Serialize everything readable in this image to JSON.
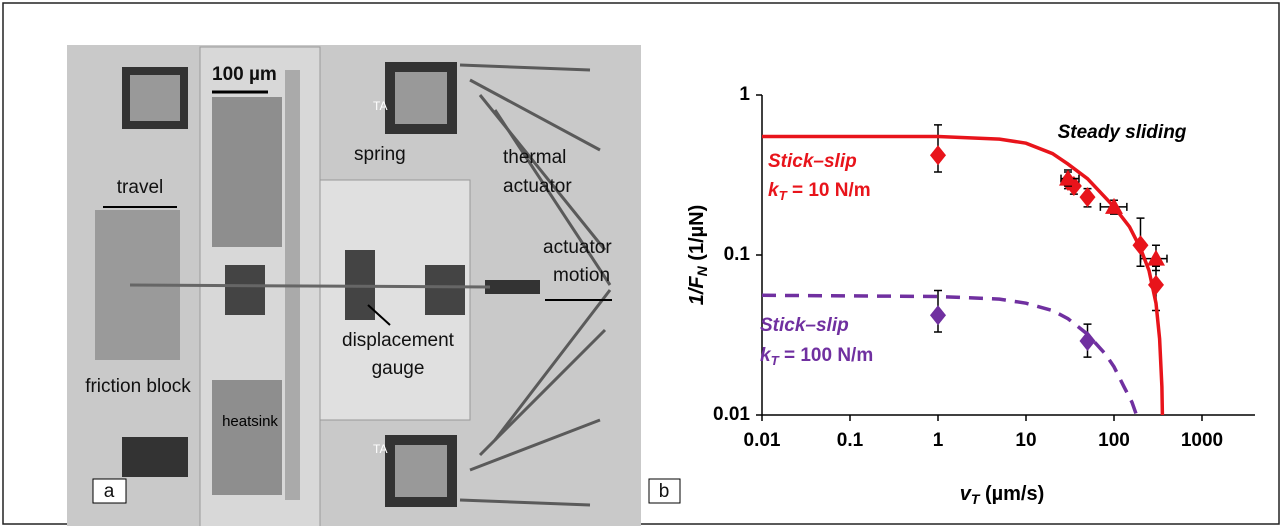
{
  "micrograph": {
    "scale_bar": "100 µm",
    "travel": "travel",
    "spring": "spring",
    "thermal": "thermal",
    "actuator": "actuator",
    "actuator2": "actuator",
    "motion": "motion",
    "displacement": "displacement",
    "gauge": "gauge",
    "friction_block": "friction block",
    "heatsink": "heatsink",
    "ta_top": "TA",
    "ta_bottom": "TA",
    "panel_label": "a"
  },
  "chart_data": {
    "type": "scatter",
    "panel_label": "b",
    "x_label": {
      "main": "v",
      "sub": "T",
      "rest": " (µm/s)"
    },
    "y_label": {
      "main": "1/F",
      "sub": "N",
      "rest": "  (1/µN)"
    },
    "log_x": true,
    "log_y": true,
    "xlim": [
      0.01,
      4000
    ],
    "ylim": [
      0.01,
      1
    ],
    "xticks": [
      0.01,
      0.1,
      1,
      10,
      100,
      1000
    ],
    "yticks": [
      0.01,
      0.1,
      1
    ],
    "annotations": [
      {
        "text": "Steady sliding",
        "color": "#000"
      },
      {
        "text": "Stick–slip",
        "color": "#e8141b"
      },
      {
        "main": "k",
        "sub": "T",
        "rest": " = 10 N/m",
        "color": "#e8141b"
      },
      {
        "text": "Stick–slip",
        "color": "#7030a0"
      },
      {
        "main": "k",
        "sub": "T",
        "rest": " = 100 N/m",
        "color": "#7030a0"
      }
    ],
    "series": [
      {
        "marker": "diamond",
        "color": "#e8141b",
        "x": [
          1,
          30,
          35,
          50,
          200,
          300
        ],
        "values": [
          0.42,
          0.29,
          0.27,
          0.23,
          0.115,
          0.065
        ],
        "ylow": [
          0.33,
          0.26,
          0.24,
          0.2,
          0.085,
          0.045
        ],
        "yhigh": [
          0.65,
          0.33,
          0.3,
          0.26,
          0.17,
          0.085
        ]
      },
      {
        "marker": "triangle",
        "color": "#e8141b",
        "x": [
          30,
          100,
          300
        ],
        "values": [
          0.3,
          0.2,
          0.095
        ],
        "xlow": [
          25,
          70,
          200
        ],
        "xhigh": [
          40,
          140,
          400
        ],
        "ylow": [
          0.27,
          0.18,
          0.08
        ],
        "yhigh": [
          0.34,
          0.22,
          0.115
        ]
      },
      {
        "marker": "line",
        "color": "#e8141b",
        "x": [
          0.01,
          1,
          5,
          10,
          20,
          30,
          50,
          100,
          150,
          200,
          250,
          300,
          330,
          350,
          355
        ],
        "values": [
          0.55,
          0.55,
          0.53,
          0.5,
          0.43,
          0.37,
          0.3,
          0.2,
          0.15,
          0.11,
          0.08,
          0.05,
          0.03,
          0.015,
          0.01
        ]
      },
      {
        "marker": "diamond",
        "color": "#7030a0",
        "x": [
          1,
          50
        ],
        "values": [
          0.042,
          0.029
        ],
        "ylow": [
          0.033,
          0.023
        ],
        "yhigh": [
          0.06,
          0.037
        ]
      },
      {
        "marker": "dashed",
        "color": "#7030a0",
        "x": [
          0.01,
          1,
          5,
          10,
          20,
          30,
          50,
          80,
          100,
          130,
          160,
          180
        ],
        "values": [
          0.056,
          0.055,
          0.053,
          0.05,
          0.045,
          0.04,
          0.032,
          0.024,
          0.02,
          0.015,
          0.012,
          0.01
        ]
      }
    ]
  }
}
